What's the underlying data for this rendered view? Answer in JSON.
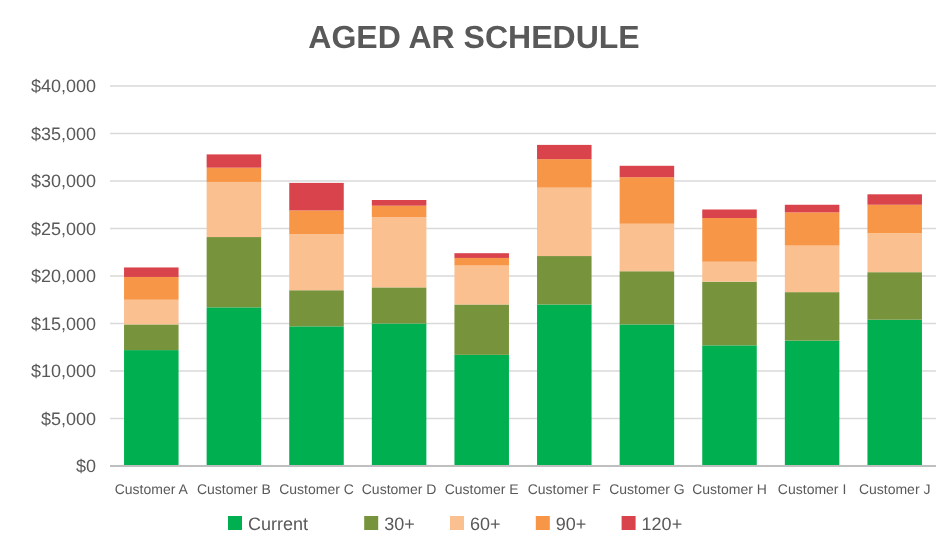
{
  "chart_data": {
    "type": "bar",
    "title": "AGED AR SCHEDULE",
    "stacked": true,
    "grid": "y",
    "legend": "bottom",
    "categories": [
      "Customer A",
      "Customer B",
      "Customer C",
      "Customer D",
      "Customer E",
      "Customer F",
      "Customer G",
      "Customer H",
      "Customer I",
      "Customer J"
    ],
    "series": [
      {
        "name": "Current",
        "color": "#00b050",
        "values": [
          12200,
          16700,
          14700,
          15000,
          11700,
          17000,
          14900,
          12700,
          13200,
          15400
        ]
      },
      {
        "name": "30+",
        "color": "#77933c",
        "values": [
          2700,
          7400,
          3800,
          3800,
          5300,
          5100,
          5600,
          6700,
          5100,
          5000
        ]
      },
      {
        "name": "60+",
        "color": "#fac090",
        "values": [
          2600,
          5800,
          5900,
          7400,
          4100,
          7200,
          5000,
          2100,
          4900,
          4100
        ]
      },
      {
        "name": "90+",
        "color": "#f79646",
        "values": [
          2400,
          1500,
          2500,
          1200,
          800,
          3000,
          4900,
          4600,
          3500,
          3000
        ]
      },
      {
        "name": "120+",
        "color": "#d9434b",
        "values": [
          1000,
          1400,
          2900,
          600,
          500,
          1500,
          1200,
          900,
          800,
          1100
        ]
      }
    ],
    "ylim": [
      0,
      40000
    ],
    "yticks": [
      {
        "value": 0,
        "label": "$0"
      },
      {
        "value": 5000,
        "label": "$5,000"
      },
      {
        "value": 10000,
        "label": "$10,000"
      },
      {
        "value": 15000,
        "label": "$15,000"
      },
      {
        "value": 20000,
        "label": "$20,000"
      },
      {
        "value": 25000,
        "label": "$25,000"
      },
      {
        "value": 30000,
        "label": "$30,000"
      },
      {
        "value": 35000,
        "label": "$35,000"
      },
      {
        "value": 40000,
        "label": "$40,000"
      }
    ]
  }
}
